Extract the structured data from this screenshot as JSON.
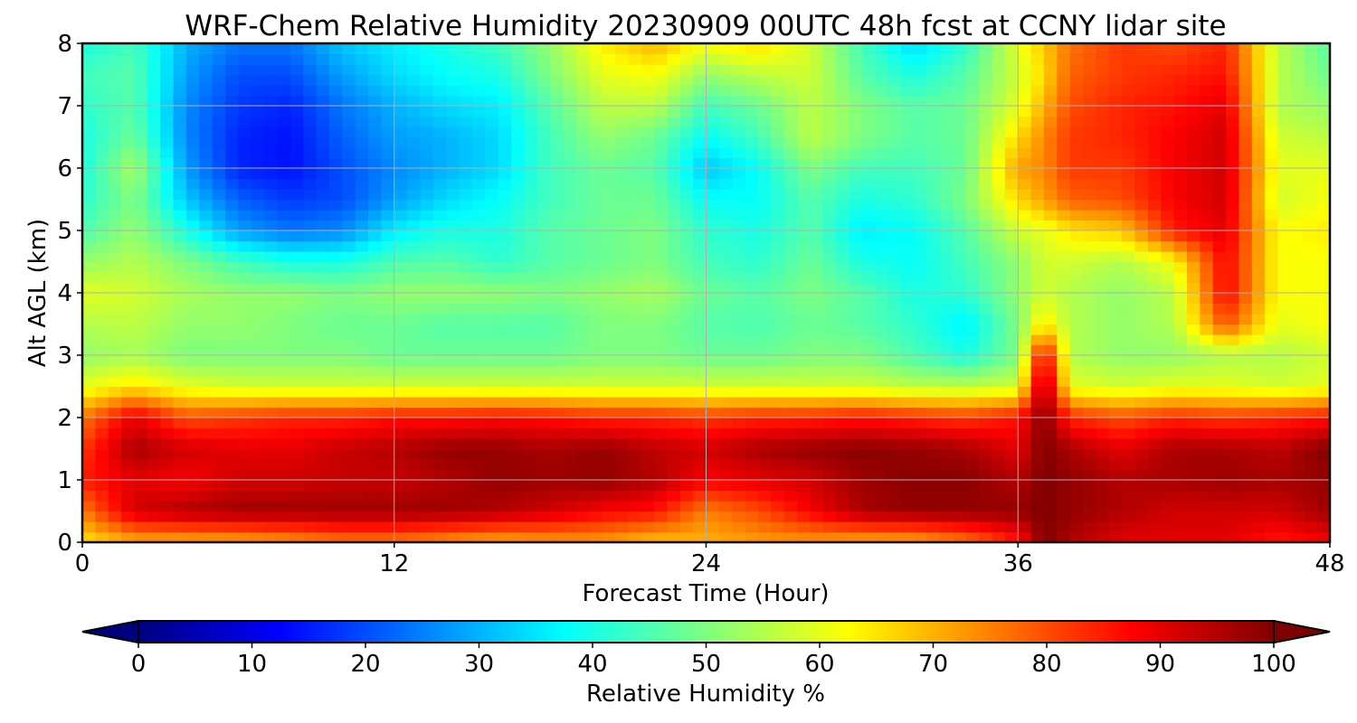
{
  "chart_data": {
    "type": "heatmap",
    "title": "WRF-Chem Relative Humidity 20230909 00UTC 48h fcst at CCNY lidar site",
    "xlabel": "Forecast Time (Hour)",
    "ylabel": "Alt AGL (km)",
    "xlim": [
      0,
      48
    ],
    "ylim": [
      0,
      8
    ],
    "x_ticks": [
      0,
      12,
      24,
      36,
      48
    ],
    "y_ticks": [
      0,
      1,
      2,
      3,
      4,
      5,
      6,
      7,
      8
    ],
    "grid": true,
    "colormap": "jet",
    "colorbar": {
      "label": "Relative Humidity %",
      "range": [
        0,
        100
      ],
      "ticks": [
        0,
        10,
        20,
        30,
        40,
        50,
        60,
        70,
        80,
        90,
        100
      ],
      "orientation": "horizontal",
      "extend": "both",
      "placement": "bottom"
    },
    "x": [
      0,
      2,
      4,
      6,
      8,
      10,
      12,
      14,
      16,
      18,
      20,
      22,
      24,
      26,
      28,
      30,
      32,
      34,
      36,
      37,
      38,
      40,
      42,
      44,
      46,
      48
    ],
    "y": [
      0,
      0.5,
      1,
      1.5,
      2,
      2.5,
      3,
      3.5,
      4,
      4.5,
      5,
      5.5,
      6,
      6.5,
      7,
      7.5,
      8
    ],
    "values": [
      [
        65,
        70,
        70,
        70,
        72,
        75,
        75,
        72,
        70,
        72,
        72,
        68,
        70,
        72,
        72,
        70,
        70,
        75,
        85,
        100,
        95,
        90,
        90,
        90,
        85,
        88
      ],
      [
        75,
        92,
        95,
        97,
        97,
        97,
        97,
        97,
        95,
        92,
        88,
        86,
        75,
        80,
        88,
        96,
        98,
        98,
        98,
        100,
        98,
        95,
        92,
        92,
        92,
        97
      ],
      [
        85,
        90,
        88,
        92,
        92,
        93,
        93,
        95,
        98,
        97,
        98,
        95,
        88,
        90,
        92,
        97,
        99,
        99,
        95,
        100,
        98,
        95,
        96,
        97,
        96,
        98
      ],
      [
        82,
        96,
        92,
        90,
        90,
        93,
        95,
        98,
        98,
        96,
        98,
        94,
        92,
        96,
        98,
        99,
        98,
        96,
        90,
        100,
        96,
        90,
        96,
        96,
        94,
        100
      ],
      [
        76,
        90,
        80,
        82,
        84,
        84,
        86,
        86,
        87,
        86,
        84,
        84,
        82,
        84,
        84,
        86,
        84,
        82,
        86,
        100,
        84,
        80,
        84,
        82,
        84,
        86
      ],
      [
        60,
        65,
        60,
        58,
        58,
        58,
        58,
        58,
        58,
        58,
        58,
        58,
        58,
        58,
        58,
        58,
        56,
        56,
        58,
        98,
        60,
        58,
        60,
        60,
        58,
        60
      ],
      [
        52,
        54,
        50,
        50,
        50,
        50,
        48,
        48,
        48,
        48,
        50,
        50,
        48,
        48,
        50,
        50,
        45,
        40,
        50,
        90,
        55,
        52,
        52,
        55,
        55,
        58
      ],
      [
        55,
        56,
        52,
        52,
        50,
        48,
        48,
        46,
        46,
        46,
        50,
        50,
        46,
        45,
        48,
        46,
        42,
        36,
        50,
        65,
        55,
        52,
        55,
        80,
        60,
        62
      ],
      [
        60,
        58,
        54,
        52,
        52,
        50,
        52,
        52,
        52,
        50,
        52,
        54,
        48,
        46,
        50,
        46,
        40,
        42,
        52,
        58,
        55,
        52,
        56,
        88,
        62,
        62
      ],
      [
        52,
        55,
        50,
        44,
        40,
        40,
        45,
        46,
        42,
        46,
        48,
        50,
        44,
        42,
        48,
        40,
        38,
        44,
        52,
        58,
        58,
        55,
        62,
        88,
        62,
        62
      ],
      [
        45,
        52,
        40,
        28,
        24,
        26,
        36,
        40,
        40,
        46,
        48,
        50,
        42,
        40,
        46,
        36,
        38,
        46,
        58,
        60,
        65,
        68,
        85,
        90,
        62,
        64
      ],
      [
        42,
        50,
        32,
        22,
        18,
        20,
        28,
        34,
        38,
        44,
        48,
        48,
        38,
        38,
        46,
        40,
        42,
        50,
        66,
        72,
        78,
        80,
        88,
        92,
        58,
        62
      ],
      [
        40,
        54,
        28,
        16,
        14,
        20,
        26,
        30,
        34,
        44,
        48,
        46,
        32,
        38,
        50,
        44,
        44,
        48,
        72,
        74,
        82,
        82,
        88,
        92,
        60,
        60
      ],
      [
        40,
        48,
        26,
        16,
        14,
        22,
        28,
        30,
        34,
        44,
        52,
        48,
        38,
        44,
        56,
        50,
        46,
        48,
        66,
        74,
        82,
        84,
        88,
        92,
        58,
        56
      ],
      [
        42,
        46,
        26,
        18,
        16,
        24,
        30,
        34,
        36,
        46,
        56,
        56,
        44,
        48,
        56,
        50,
        46,
        48,
        60,
        70,
        80,
        84,
        86,
        90,
        55,
        52
      ],
      [
        44,
        46,
        28,
        20,
        20,
        28,
        34,
        38,
        40,
        50,
        60,
        62,
        52,
        56,
        58,
        46,
        40,
        46,
        58,
        66,
        78,
        82,
        84,
        86,
        56,
        48
      ],
      [
        40,
        44,
        30,
        24,
        24,
        32,
        36,
        40,
        44,
        52,
        64,
        70,
        62,
        66,
        58,
        44,
        34,
        42,
        60,
        68,
        76,
        82,
        80,
        84,
        56,
        46
      ]
    ]
  }
}
